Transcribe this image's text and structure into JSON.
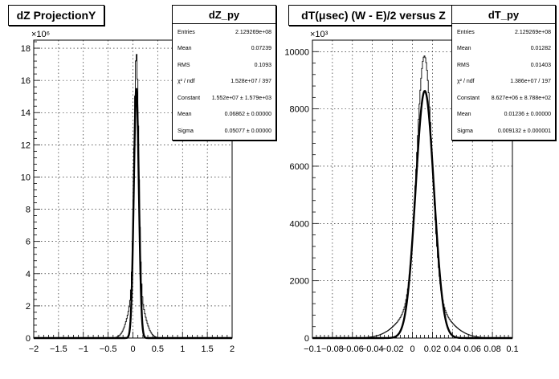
{
  "pads": [
    {
      "title": "dZ ProjectionY",
      "stats": {
        "name": "dZ_py",
        "rows": [
          {
            "label": "Entries",
            "value": "2.129269e+08"
          },
          {
            "label": "Mean",
            "value": "0.07239"
          },
          {
            "label": "RMS",
            "value": "0.1093"
          },
          {
            "label": "χ² / ndf",
            "value": "1.528e+07 / 397"
          },
          {
            "label": "Constant",
            "value": "1.552e+07 ± 1.579e+03"
          },
          {
            "label": "Mean",
            "value": "0.06862 ± 0.00000"
          },
          {
            "label": "Sigma",
            "value": "0.05077 ± 0.00000"
          }
        ]
      },
      "exponent": "×10⁶"
    },
    {
      "title": "dT(μsec) (W - E)/2 versus Z",
      "stats": {
        "name": "dT_py",
        "rows": [
          {
            "label": "Entries",
            "value": "2.129269e+08"
          },
          {
            "label": "Mean",
            "value": "0.01282"
          },
          {
            "label": "RMS",
            "value": "0.01403"
          },
          {
            "label": "χ² / ndf",
            "value": "1.386e+07 / 197"
          },
          {
            "label": "Constant",
            "value": "8.627e+06 ± 8.788e+02"
          },
          {
            "label": "Mean",
            "value": "0.01236 ± 0.00000"
          },
          {
            "label": "Sigma",
            "value": "0.009132 ± 0.000001"
          }
        ]
      },
      "exponent": "×10³"
    }
  ],
  "chart_data": [
    {
      "type": "line",
      "title": "dZ ProjectionY",
      "xlim": [
        -2,
        2
      ],
      "ylim": [
        0,
        18.5
      ],
      "y_scale_note": "×10⁶",
      "x_ticks": [
        -2,
        -1.5,
        -1,
        -0.5,
        0,
        0.5,
        1,
        1.5,
        2
      ],
      "x_tick_labels": [
        "−2",
        "−1.5",
        "−1",
        "−0.5",
        "0",
        "0.5",
        "1",
        "1.5",
        "2"
      ],
      "y_ticks": [
        0,
        2,
        4,
        6,
        8,
        10,
        12,
        14,
        16,
        18
      ],
      "y_tick_labels": [
        "0",
        "2",
        "4",
        "6",
        "8",
        "10",
        "12",
        "14",
        "16",
        "18"
      ],
      "grid": true,
      "series": [
        {
          "name": "dZ_py",
          "style": "histogram",
          "peak_x": 0.07,
          "peak_y": 17.7,
          "core_width": 0.045,
          "tail_width": 0.14,
          "tail_fraction": 0.18
        },
        {
          "name": "Gaussian fit",
          "style": "fit",
          "constant": 15.52,
          "mean": 0.06862,
          "sigma": 0.05077
        }
      ]
    },
    {
      "type": "line",
      "title": "dT(μsec) (W - E)/2 versus Z",
      "xlim": [
        -0.1,
        0.1
      ],
      "ylim": [
        0,
        10400
      ],
      "y_scale_note": "×10³",
      "x_ticks": [
        -0.1,
        -0.08,
        -0.06,
        -0.04,
        -0.02,
        0,
        0.02,
        0.04,
        0.06,
        0.08,
        0.1
      ],
      "x_tick_labels": [
        "−0.1",
        "−0.08",
        "−0.06",
        "−0.04",
        "−0.02",
        "0",
        "0.02",
        "0.04",
        "0.06",
        "0.08",
        "0.1"
      ],
      "y_ticks": [
        0,
        2000,
        4000,
        6000,
        8000,
        10000
      ],
      "y_tick_labels": [
        "0",
        "2000",
        "4000",
        "6000",
        "8000",
        "10000"
      ],
      "grid": true,
      "series": [
        {
          "name": "dT_py",
          "style": "histogram",
          "peak_x": 0.012,
          "peak_y": 9850,
          "core_width": 0.0075,
          "tail_width": 0.02,
          "tail_fraction": 0.14
        },
        {
          "name": "Gaussian fit",
          "style": "fit",
          "constant": 8627,
          "mean": 0.01236,
          "sigma": 0.009132
        }
      ]
    }
  ]
}
